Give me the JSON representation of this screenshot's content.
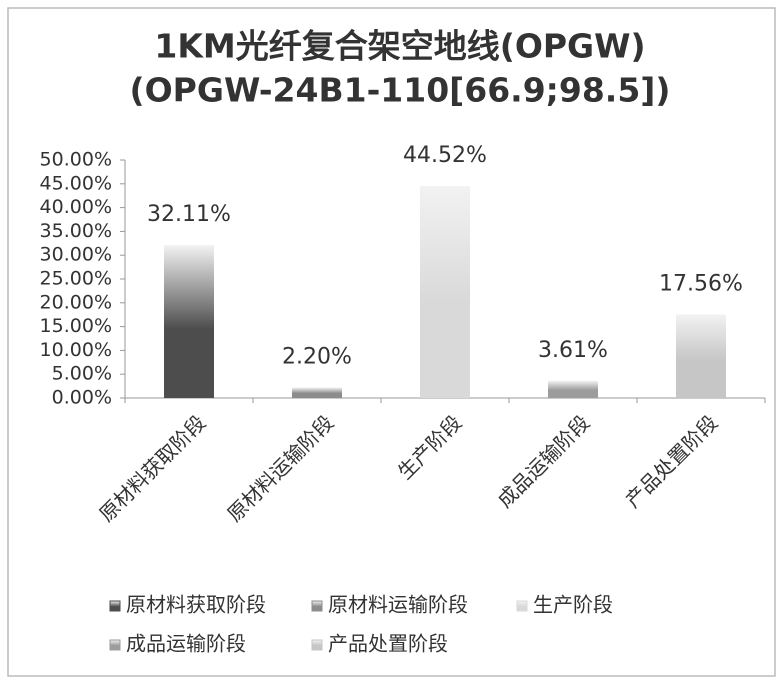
{
  "chart_data": {
    "type": "bar",
    "title": "1KM光纤复合架空地线(OPGW)",
    "subtitle": "(OPGW-24B1-110[66.9;98.5])",
    "categories": [
      "原材料获取阶段",
      "原材料运输阶段",
      "生产阶段",
      "成品运输阶段",
      "产品处置阶段"
    ],
    "values": [
      32.11,
      2.2,
      44.52,
      3.61,
      17.56
    ],
    "value_labels": [
      "32.11%",
      "2.20%",
      "44.52%",
      "3.61%",
      "17.56%"
    ],
    "colors": [
      "#4d4d4d",
      "#8c8c8c",
      "#d9d9d9",
      "#9c9c9c",
      "#c6c6c6"
    ],
    "ylim": [
      0,
      50
    ],
    "yticks": [
      {
        "value": 0,
        "label": "0.00%"
      },
      {
        "value": 5,
        "label": "5.00%"
      },
      {
        "value": 10,
        "label": "10.00%"
      },
      {
        "value": 15,
        "label": "15.00%"
      },
      {
        "value": 20,
        "label": "20.00%"
      },
      {
        "value": 25,
        "label": "25.00%"
      },
      {
        "value": 30,
        "label": "30.00%"
      },
      {
        "value": 35,
        "label": "35.00%"
      },
      {
        "value": 40,
        "label": "40.00%"
      },
      {
        "value": 45,
        "label": "45.00%"
      },
      {
        "value": 50,
        "label": "50.00%"
      }
    ],
    "grid": false,
    "legend": "bottom"
  }
}
